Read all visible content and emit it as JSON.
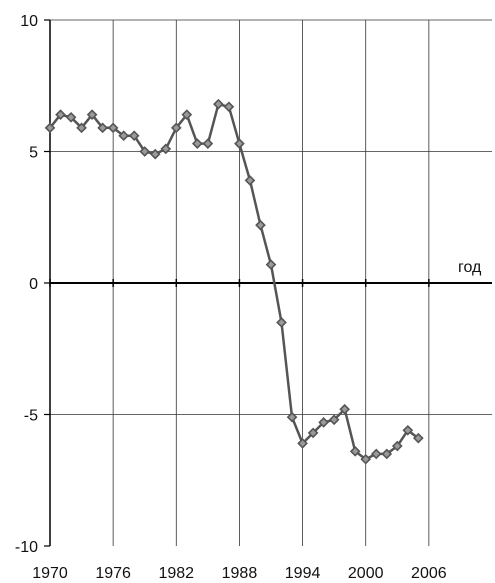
{
  "chart_data": {
    "type": "line",
    "title": "",
    "xlabel": "год",
    "ylabel": "",
    "xlim": [
      1970,
      2012
    ],
    "ylim": [
      -10,
      10
    ],
    "x_ticks": [
      1970,
      1976,
      1982,
      1988,
      1994,
      2000,
      2006
    ],
    "x_tick_labels": [
      "1970",
      "1976",
      "1982",
      "1988",
      "1994",
      "2000",
      "2006"
    ],
    "y_ticks": [
      10,
      5,
      0,
      -5,
      -10
    ],
    "y_tick_labels": [
      "10",
      "5",
      "0",
      "-5",
      "-10"
    ],
    "grid": true,
    "legend": "none",
    "colors": {
      "line": "#555555",
      "marker_fill": "#9a9a9a",
      "grid": "#333333",
      "zero_line": "#000000"
    },
    "series": [
      {
        "x": [
          1970,
          1971,
          1972,
          1973,
          1974,
          1975,
          1976,
          1977,
          1978,
          1979,
          1980,
          1981,
          1982,
          1983,
          1984,
          1985,
          1986,
          1987,
          1988,
          1989,
          1990,
          1991,
          1992,
          1993,
          1994,
          1995,
          1996,
          1997,
          1998,
          1999,
          2000,
          2001,
          2002,
          2003,
          2004,
          2005
        ],
        "values": [
          5.9,
          6.4,
          6.3,
          5.9,
          6.4,
          5.9,
          5.9,
          5.6,
          5.6,
          5.0,
          4.9,
          5.1,
          5.9,
          6.4,
          5.3,
          5.3,
          6.8,
          6.7,
          5.3,
          3.9,
          2.2,
          0.7,
          -1.5,
          -5.1,
          -6.1,
          -5.7,
          -5.3,
          -5.2,
          -4.8,
          -6.4,
          -6.7,
          -6.5,
          -6.5,
          -6.2,
          -5.6,
          -5.9
        ]
      }
    ]
  }
}
